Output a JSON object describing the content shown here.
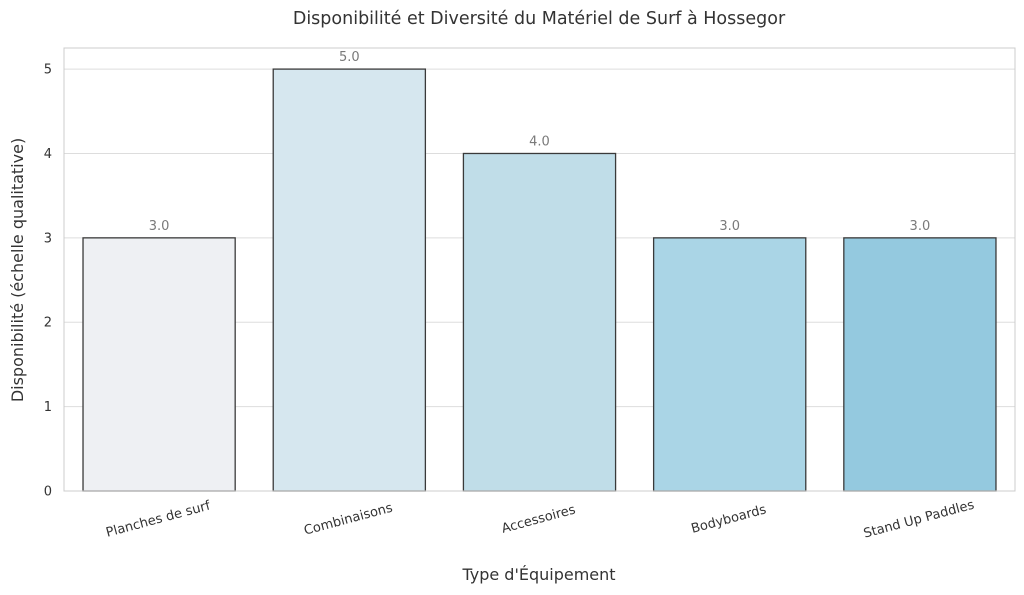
{
  "chart_data": {
    "type": "bar",
    "title": "Disponibilité et Diversité du Matériel de Surf à Hossegor",
    "xlabel": "Type d'Équipement",
    "ylabel": "Disponibilité (échelle qualitative)",
    "categories": [
      "Planches de surf",
      "Combinaisons",
      "Accessoires",
      "Bodyboards",
      "Stand Up Paddles"
    ],
    "values": [
      3,
      5,
      4,
      3,
      3
    ],
    "value_labels": [
      "3.0",
      "5.0",
      "4.0",
      "3.0",
      "3.0"
    ],
    "ylim": [
      0,
      5.25
    ],
    "yticks": [
      0,
      1,
      2,
      3,
      4,
      5
    ],
    "grid": true,
    "colors": [
      "#eef0f3",
      "#d6e7ef",
      "#c0dde8",
      "#aad5e6",
      "#94c9df"
    ],
    "bar_edge_color": "#3a3a3a",
    "value_label_color": "#7a7a7a"
  }
}
